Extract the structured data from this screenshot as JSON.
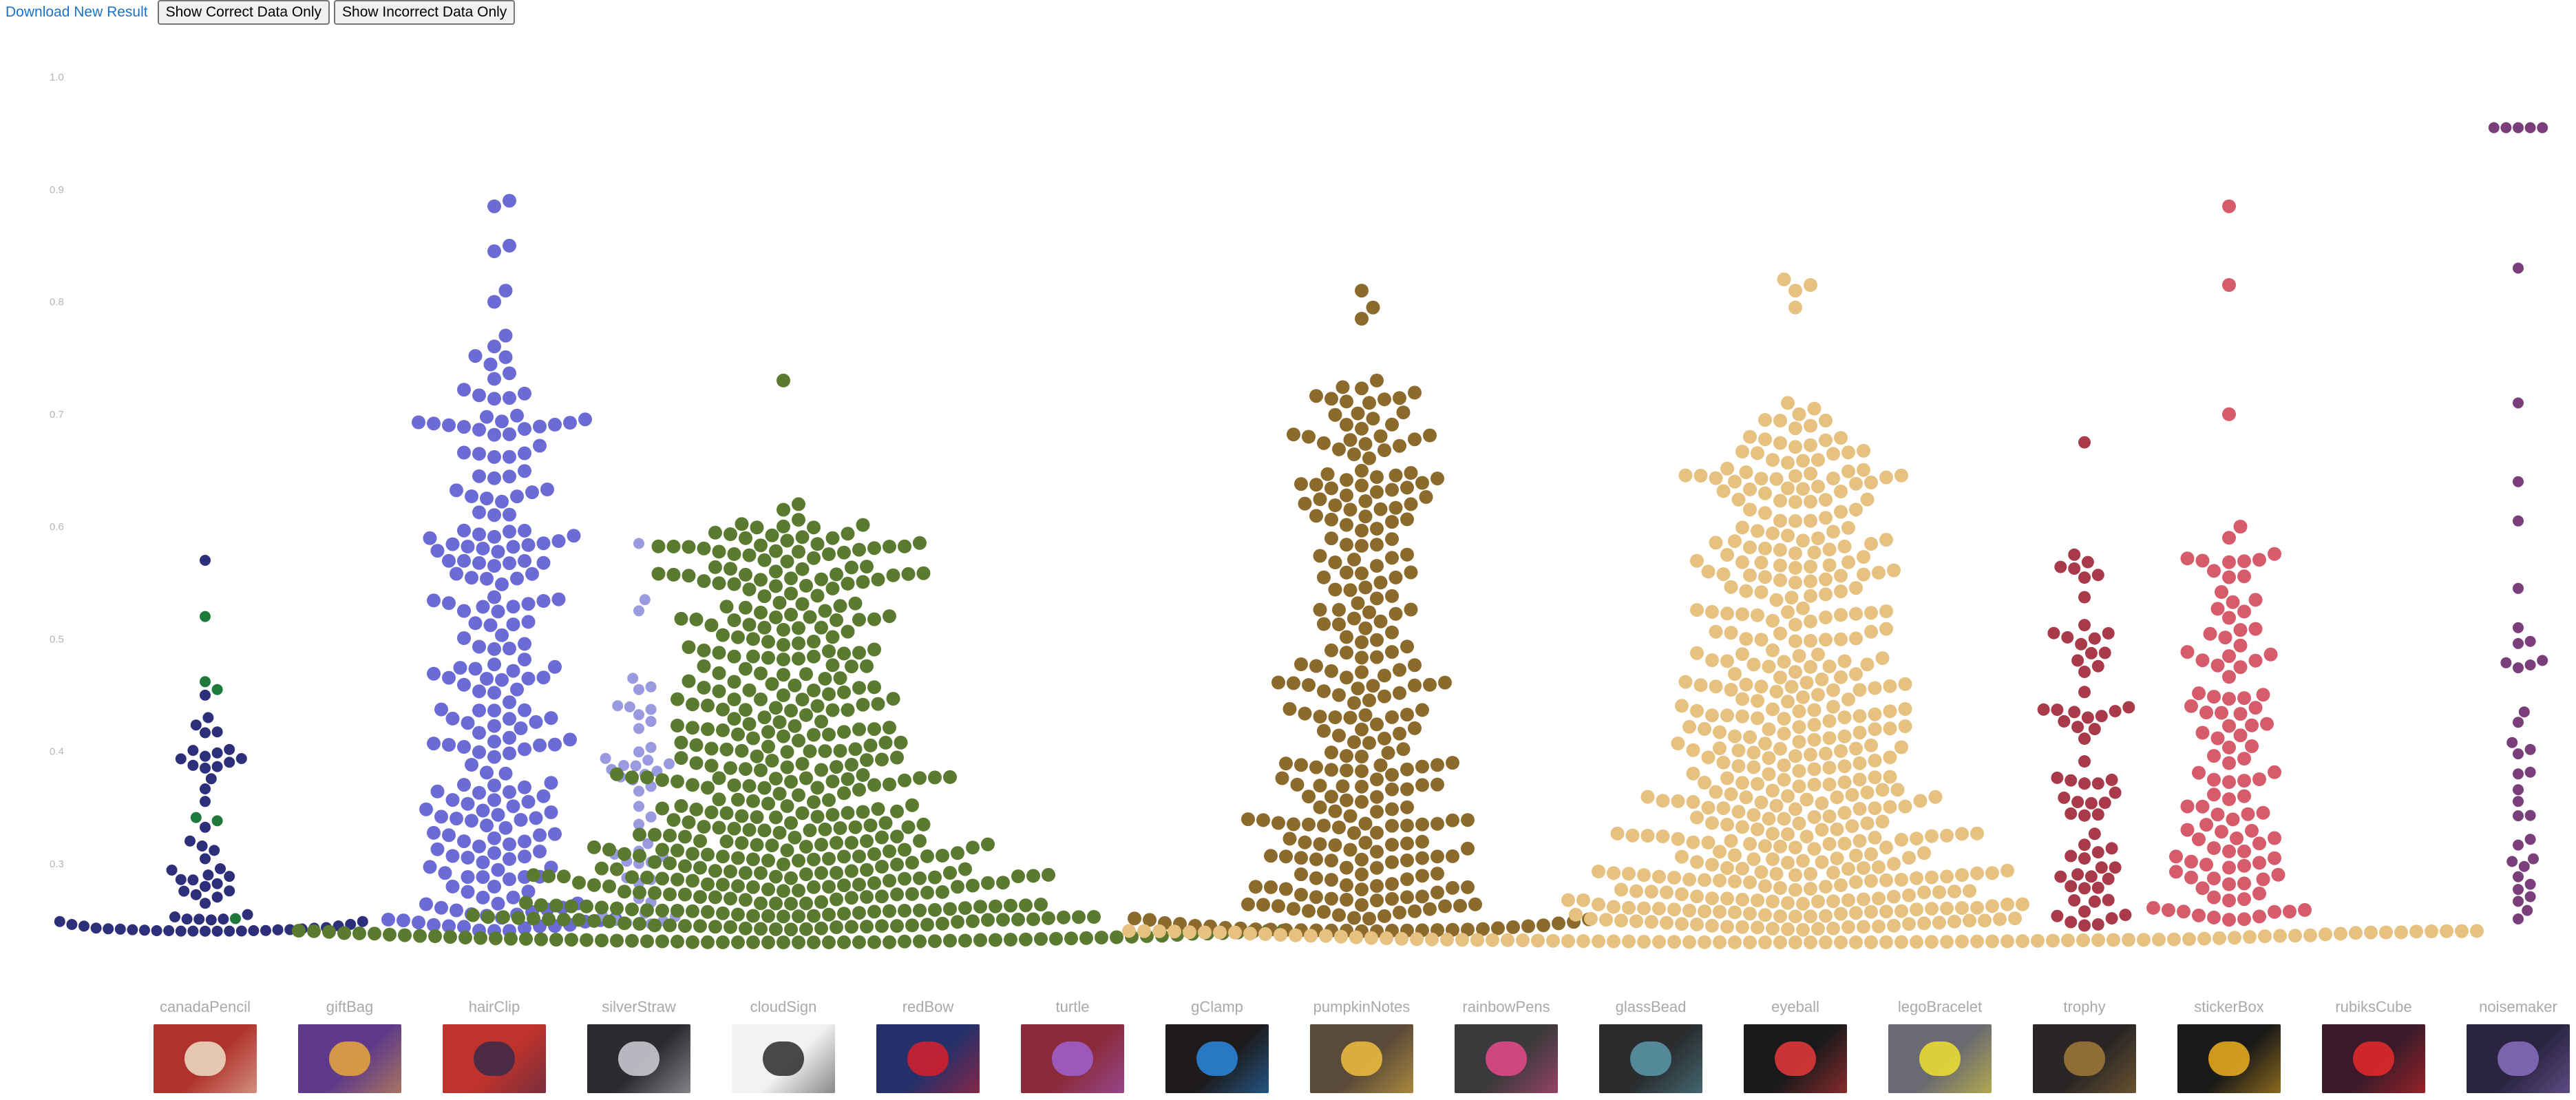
{
  "toolbar": {
    "download_label": "Download New Result",
    "correct_label": "Show Correct Data Only",
    "incorrect_label": "Show Incorrect Data Only"
  },
  "chart_data": {
    "type": "scatter",
    "variant": "beeswarm",
    "title": "",
    "xlabel": "",
    "ylabel": "",
    "ylim": [
      0.2,
      1.0
    ],
    "y_ticks": [
      "0.3",
      "0.4",
      "0.5",
      "0.6",
      "0.7",
      "0.8",
      "0.9",
      "1.0"
    ],
    "grid": false,
    "categories": [
      "canadaPencil",
      "giftBag",
      "hairClip",
      "silverStraw",
      "cloudSign",
      "redBow",
      "turtle",
      "gClamp",
      "pumpkinNotes",
      "rainbowPens",
      "glassBead",
      "eyeball",
      "legoBracelet",
      "trophy",
      "stickerBox",
      "rubiksCube",
      "noisemaker"
    ],
    "highlight_color": "#1e7a3a",
    "series": [
      {
        "category": "canadaPencil",
        "color": "#2e2f7a",
        "count": 75,
        "r": 8,
        "min": 0.24,
        "max": 0.57,
        "shape": 2.6,
        "outliers": [
          0.57,
          0.52,
          0.462,
          0.455,
          0.45,
          0.43
        ],
        "highlights": [
          0.52,
          0.462,
          0.455,
          0.345,
          0.34,
          0.255
        ]
      },
      {
        "category": "giftBag",
        "color": "#2e2f7a",
        "count": 0,
        "r": 8,
        "min": 0,
        "max": 0,
        "shape": 1,
        "outliers": [],
        "highlights": []
      },
      {
        "category": "hairClip",
        "color": "#6b6bd6",
        "count": 230,
        "r": 10,
        "min": 0.24,
        "max": 0.89,
        "shape": 1.3,
        "outliers": [
          0.89,
          0.885,
          0.85,
          0.845,
          0.81,
          0.8,
          0.77
        ],
        "highlights": []
      },
      {
        "category": "silverStraw",
        "color": "#9a9ae0",
        "count": 50,
        "r": 8,
        "min": 0.245,
        "max": 0.585,
        "shape": 1.5,
        "outliers": [
          0.585,
          0.535,
          0.525,
          0.465
        ],
        "highlights": []
      },
      {
        "category": "cloudSign",
        "color": "#5a7a2f",
        "count": 540,
        "r": 10,
        "min": 0.23,
        "max": 0.73,
        "shape": 1.8,
        "outliers": [
          0.73,
          0.62,
          0.615
        ],
        "highlights": []
      },
      {
        "category": "redBow",
        "color": "#5a7a2f",
        "count": 0,
        "r": 10,
        "min": 0,
        "max": 0,
        "shape": 1,
        "outliers": [],
        "highlights": []
      },
      {
        "category": "turtle",
        "color": "#5a7a2f",
        "count": 0,
        "r": 10,
        "min": 0,
        "max": 0,
        "shape": 1,
        "outliers": [],
        "highlights": []
      },
      {
        "category": "gClamp",
        "color": "#5a7a2f",
        "count": 0,
        "r": 10,
        "min": 0,
        "max": 0,
        "shape": 1,
        "outliers": [],
        "highlights": []
      },
      {
        "category": "pumpkinNotes",
        "color": "#8c6a2c",
        "count": 300,
        "r": 10,
        "min": 0.24,
        "max": 0.81,
        "shape": 1.7,
        "outliers": [
          0.81,
          0.795,
          0.785,
          0.73
        ],
        "highlights": []
      },
      {
        "category": "rainbowPens",
        "color": "#8c6a2c",
        "count": 0,
        "r": 10,
        "min": 0,
        "max": 0,
        "shape": 1,
        "outliers": [],
        "highlights": []
      },
      {
        "category": "glassBead",
        "color": "#8c6a2c",
        "count": 0,
        "r": 10,
        "min": 0,
        "max": 0,
        "shape": 1,
        "outliers": [],
        "highlights": []
      },
      {
        "category": "eyeball",
        "color": "#e6c17f",
        "count": 560,
        "r": 10,
        "min": 0.23,
        "max": 0.82,
        "shape": 2.0,
        "outliers": [
          0.82,
          0.815,
          0.81,
          0.795,
          0.71,
          0.705,
          0.7
        ],
        "highlights": []
      },
      {
        "category": "legoBracelet",
        "color": "#e6c17f",
        "count": 0,
        "r": 10,
        "min": 0,
        "max": 0,
        "shape": 1,
        "outliers": [],
        "highlights": []
      },
      {
        "category": "trophy",
        "color": "#a83a4a",
        "count": 70,
        "r": 9,
        "min": 0.245,
        "max": 0.675,
        "shape": 1.5,
        "outliers": [
          0.675,
          0.575
        ],
        "highlights": []
      },
      {
        "category": "stickerBox",
        "color": "#d65c6c",
        "count": 110,
        "r": 10,
        "min": 0.25,
        "max": 0.885,
        "shape": 1.5,
        "outliers": [
          0.885,
          0.815,
          0.7,
          0.6,
          0.59
        ],
        "highlights": []
      },
      {
        "category": "rubiksCube",
        "color": "#d65c6c",
        "count": 0,
        "r": 10,
        "min": 0,
        "max": 0,
        "shape": 1,
        "outliers": [],
        "highlights": []
      },
      {
        "category": "noisemaker",
        "color": "#7a3f7a",
        "count": 40,
        "r": 8,
        "min": 0.25,
        "max": 0.955,
        "shape": 1.5,
        "outliers": [
          0.955,
          0.955,
          0.955,
          0.955,
          0.955,
          0.83,
          0.71,
          0.64,
          0.605,
          0.545,
          0.51
        ],
        "highlights": []
      }
    ]
  },
  "thumbnails": [
    {
      "icon": "canada-pencil-thumbnail",
      "bg": "#b0322c",
      "accent": "#efe0c8"
    },
    {
      "icon": "gift-bag-thumbnail",
      "bg": "#5f3a8a",
      "accent": "#e8a83a"
    },
    {
      "icon": "hair-clip-thumbnail",
      "bg": "#c0322c",
      "accent": "#3a2a4a"
    },
    {
      "icon": "silver-straw-thumbnail",
      "bg": "#2a2a30",
      "accent": "#d0d0d8"
    },
    {
      "icon": "cloud-sign-thumbnail",
      "bg": "#f2f2f2",
      "accent": "#2a2a2a"
    },
    {
      "icon": "red-bow-thumbnail",
      "bg": "#25306a",
      "accent": "#d81e2a"
    },
    {
      "icon": "turtle-thumbnail",
      "bg": "#8a2a3a",
      "accent": "#a060d0"
    },
    {
      "icon": "g-clamp-thumbnail",
      "bg": "#1e1a1a",
      "accent": "#2a8ae0"
    },
    {
      "icon": "pumpkin-notes-thumbnail",
      "bg": "#5a4a3a",
      "accent": "#f0c040"
    },
    {
      "icon": "rainbow-pens-thumbnail",
      "bg": "#3a3a3c",
      "accent": "#e84a8a"
    },
    {
      "icon": "glass-bead-thumbnail",
      "bg": "#2a2c2e",
      "accent": "#5a9aaa"
    },
    {
      "icon": "eyeball-thumbnail",
      "bg": "#1a1a1c",
      "accent": "#e83a3a"
    },
    {
      "icon": "lego-bracelet-thumbnail",
      "bg": "#6a6a72",
      "accent": "#f0e030"
    },
    {
      "icon": "trophy-thumbnail",
      "bg": "#2a2626",
      "accent": "#a07a3a"
    },
    {
      "icon": "sticker-box-thumbnail",
      "bg": "#1a1a1a",
      "accent": "#f0b020"
    },
    {
      "icon": "rubiks-cube-thumbnail",
      "bg": "#3a1a2a",
      "accent": "#e82a2a"
    },
    {
      "icon": "noisemaker-thumbnail",
      "bg": "#2a2440",
      "accent": "#8a70c0"
    }
  ]
}
